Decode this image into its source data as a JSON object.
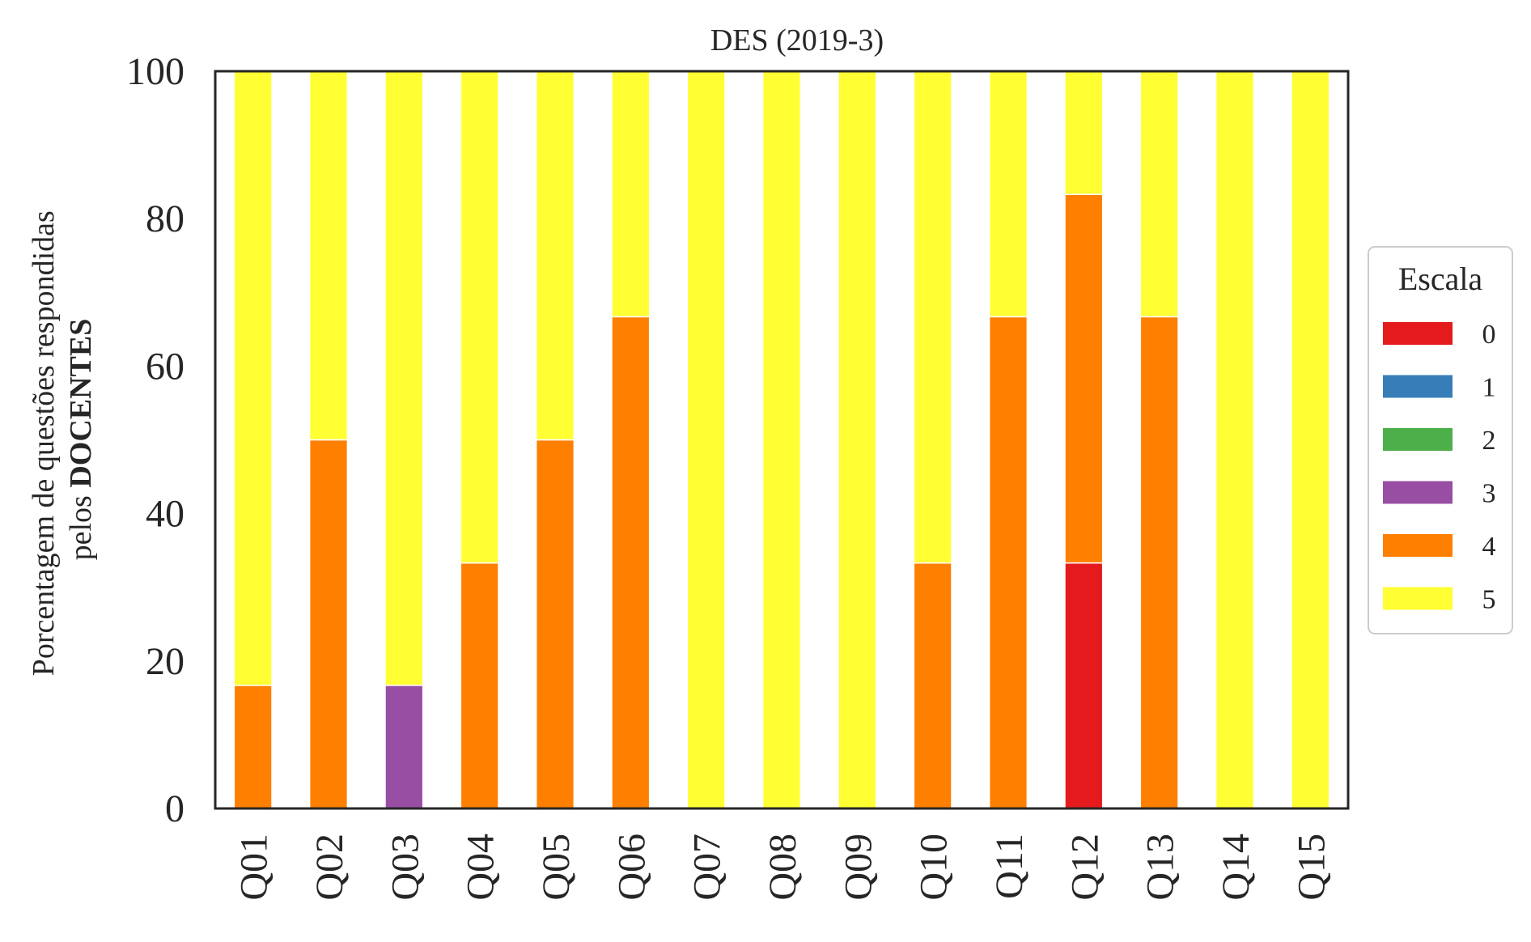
{
  "chart_data": {
    "type": "bar",
    "stacked": true,
    "title": "DES (2019-3)",
    "xlabel": "",
    "ylabel_line1": "Porcentagem de questões respondidas",
    "ylabel_line2_prefix": "pelos ",
    "ylabel_line2_bold": "DOCENTES",
    "ylim": [
      0,
      100
    ],
    "yticks": [
      0,
      20,
      40,
      60,
      80,
      100
    ],
    "grid": false,
    "categories": [
      "Q01",
      "Q02",
      "Q03",
      "Q04",
      "Q05",
      "Q06",
      "Q07",
      "Q08",
      "Q09",
      "Q10",
      "Q11",
      "Q12",
      "Q13",
      "Q14",
      "Q15"
    ],
    "series": [
      {
        "name": "0",
        "color": "#e41a1c",
        "values": [
          0,
          0,
          0,
          0,
          0,
          0,
          0,
          0,
          0,
          0,
          0,
          33.3,
          0,
          0,
          0
        ]
      },
      {
        "name": "1",
        "color": "#377eb8",
        "values": [
          0,
          0,
          0,
          0,
          0,
          0,
          0,
          0,
          0,
          0,
          0,
          0,
          0,
          0,
          0
        ]
      },
      {
        "name": "2",
        "color": "#4daf4a",
        "values": [
          0,
          0,
          0,
          0,
          0,
          0,
          0,
          0,
          0,
          0,
          0,
          0,
          0,
          0,
          0
        ]
      },
      {
        "name": "3",
        "color": "#984ea3",
        "values": [
          0,
          0,
          16.7,
          0,
          0,
          0,
          0,
          0,
          0,
          0,
          0,
          0,
          0,
          0,
          0
        ]
      },
      {
        "name": "4",
        "color": "#ff7f00",
        "values": [
          16.7,
          50,
          0,
          33.3,
          50,
          66.7,
          0,
          0,
          0,
          33.3,
          66.7,
          50,
          66.7,
          0,
          0
        ]
      },
      {
        "name": "5",
        "color": "#ffff33",
        "values": [
          83.3,
          50,
          83.3,
          66.7,
          50,
          33.3,
          100,
          100,
          100,
          66.7,
          33.3,
          16.7,
          33.3,
          100,
          100
        ]
      }
    ],
    "legend": {
      "title": "Escala",
      "placement": "center-right-outside"
    }
  }
}
